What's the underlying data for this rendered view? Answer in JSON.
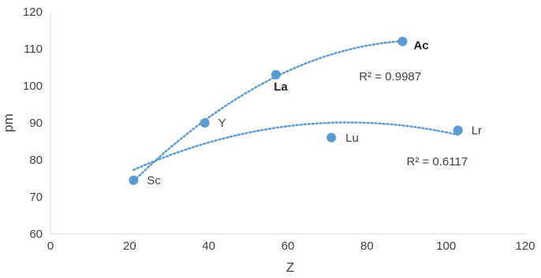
{
  "chart_data": {
    "type": "scatter",
    "title": "",
    "xlabel": "Z",
    "ylabel": "pm",
    "xlim": [
      0,
      120
    ],
    "ylim": [
      60,
      120
    ],
    "xticks": [
      0,
      20,
      40,
      60,
      80,
      100,
      120
    ],
    "yticks": [
      60,
      70,
      80,
      90,
      100,
      110,
      120
    ],
    "grid": false,
    "legend": "none",
    "marker_color": "#5b9bd5",
    "trendline_color": "#5b9bd5",
    "points": [
      {
        "label": "Sc",
        "x": 21,
        "y": 74.5,
        "bold": false
      },
      {
        "label": "Y",
        "x": 39,
        "y": 90,
        "bold": false
      },
      {
        "label": "La",
        "x": 57,
        "y": 103,
        "bold": true
      },
      {
        "label": "Ac",
        "x": 89,
        "y": 112,
        "bold": true
      },
      {
        "label": "Lu",
        "x": 71,
        "y": 86,
        "bold": false
      },
      {
        "label": "Lr",
        "x": 103,
        "y": 88,
        "bold": false
      }
    ],
    "trendlines": [
      {
        "type": "polynomial",
        "points": [
          "Sc",
          "Y",
          "La",
          "Ac"
        ],
        "annotation": "R² = 0.9987",
        "annotation_position": {
          "x": 78,
          "y": 101.5
        }
      },
      {
        "type": "polynomial",
        "points": [
          "Sc",
          "Y",
          "Lu",
          "Lr"
        ],
        "annotation": "R² = 0.6117",
        "annotation_position": {
          "x": 90,
          "y": 78.5
        }
      }
    ]
  }
}
